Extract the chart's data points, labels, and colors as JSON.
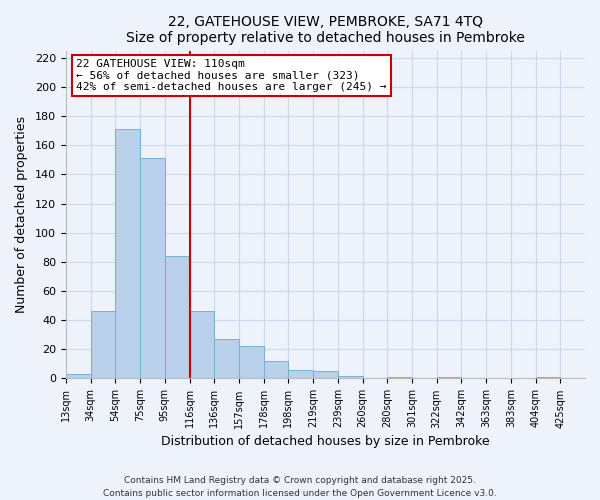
{
  "title": "22, GATEHOUSE VIEW, PEMBROKE, SA71 4TQ",
  "subtitle": "Size of property relative to detached houses in Pembroke",
  "xlabel": "Distribution of detached houses by size in Pembroke",
  "ylabel": "Number of detached properties",
  "bar_labels": [
    "13sqm",
    "34sqm",
    "54sqm",
    "75sqm",
    "95sqm",
    "116sqm",
    "136sqm",
    "157sqm",
    "178sqm",
    "198sqm",
    "219sqm",
    "239sqm",
    "260sqm",
    "280sqm",
    "301sqm",
    "322sqm",
    "342sqm",
    "363sqm",
    "383sqm",
    "404sqm",
    "425sqm"
  ],
  "bar_values": [
    3,
    46,
    171,
    151,
    84,
    46,
    27,
    22,
    12,
    6,
    5,
    2,
    0,
    1,
    0,
    1,
    0,
    0,
    0,
    1,
    0
  ],
  "bar_color": "#b8d0ea",
  "bar_edge_color": "#6aaad4",
  "grid_color": "#c8d8ee",
  "background_color": "#eef2fb",
  "vline_color": "#cc0000",
  "annotation_text": "22 GATEHOUSE VIEW: 110sqm\n← 56% of detached houses are smaller (323)\n42% of semi-detached houses are larger (245) →",
  "annotation_box_color": "#ffffff",
  "annotation_box_edge": "#cc0000",
  "ylim": [
    0,
    225
  ],
  "yticks": [
    0,
    20,
    40,
    60,
    80,
    100,
    120,
    140,
    160,
    180,
    200,
    220
  ],
  "footer1": "Contains HM Land Registry data © Crown copyright and database right 2025.",
  "footer2": "Contains public sector information licensed under the Open Government Licence v3.0."
}
